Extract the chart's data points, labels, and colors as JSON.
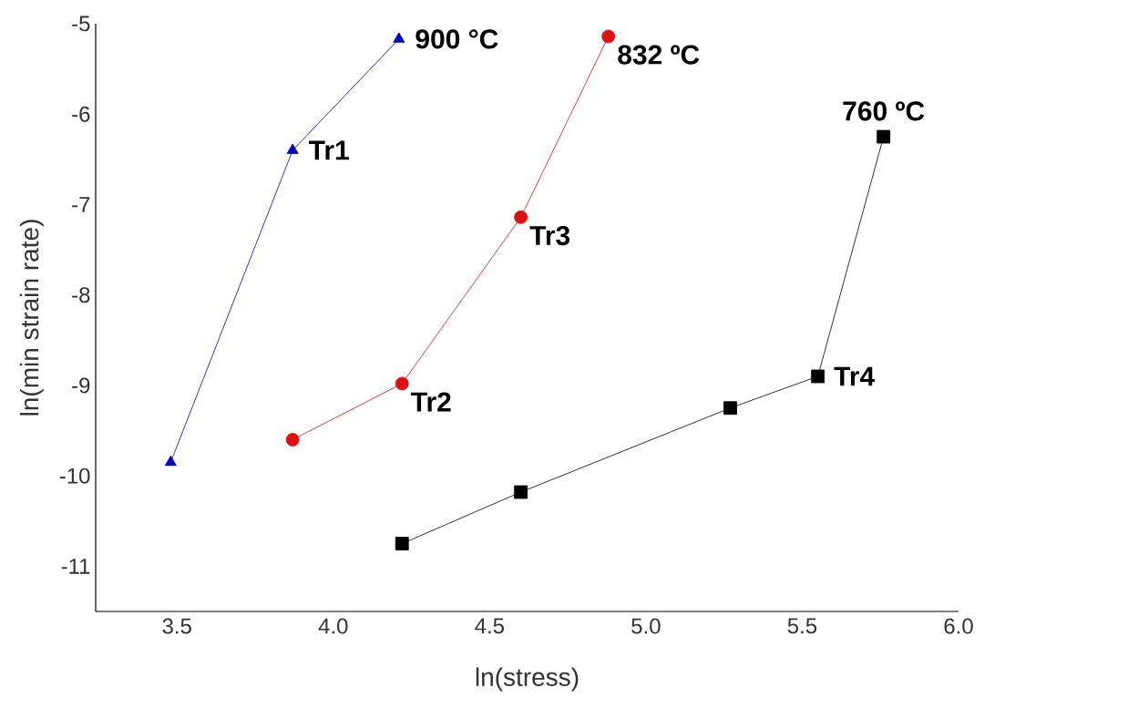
{
  "chart_data": {
    "type": "line",
    "xlabel": "ln(stress)",
    "ylabel": "ln(min strain rate)",
    "xlim": [
      3.24,
      6.0
    ],
    "ylim": [
      -11.5,
      -5
    ],
    "xticks": [
      {
        "value": 3.5,
        "label": "3.5"
      },
      {
        "value": 4.0,
        "label": "4.0"
      },
      {
        "value": 4.5,
        "label": "4.5"
      },
      {
        "value": 5.0,
        "label": "5.0"
      },
      {
        "value": 5.5,
        "label": "5.5"
      },
      {
        "value": 6.0,
        "label": "6.0"
      }
    ],
    "yticks": [
      -11,
      -10,
      -9,
      -8,
      -7,
      -6,
      -5
    ],
    "grid": false,
    "series": [
      {
        "color": "#0000c0",
        "marker": "triangle",
        "x": [
          3.48,
          3.87,
          4.21
        ],
        "values": [
          -9.85,
          -6.4,
          -5.17
        ]
      },
      {
        "color": "#dd1111",
        "marker": "circle",
        "x": [
          3.87,
          4.22,
          4.6,
          4.88
        ],
        "values": [
          -9.6,
          -8.98,
          -7.14,
          -5.14
        ]
      },
      {
        "color": "#000000",
        "marker": "square",
        "x": [
          4.22,
          4.6,
          5.27,
          5.55,
          5.76
        ],
        "values": [
          -10.75,
          -10.18,
          -9.25,
          -8.9,
          -6.25
        ]
      }
    ],
    "annotations": [
      {
        "text": "900 °C",
        "x": 4.21,
        "y": -5.17
      },
      {
        "text": "Tr1",
        "x": 3.87,
        "y": -6.4
      },
      {
        "text": "832 ºC",
        "x": 4.88,
        "y": -5.14
      },
      {
        "text": "Tr3",
        "x": 4.6,
        "y": -7.14
      },
      {
        "text": "Tr2",
        "x": 4.22,
        "y": -8.98
      },
      {
        "text": "760 ºC",
        "x": 5.76,
        "y": -6.25
      },
      {
        "text": "Tr4",
        "x": 5.55,
        "y": -8.9
      }
    ]
  }
}
